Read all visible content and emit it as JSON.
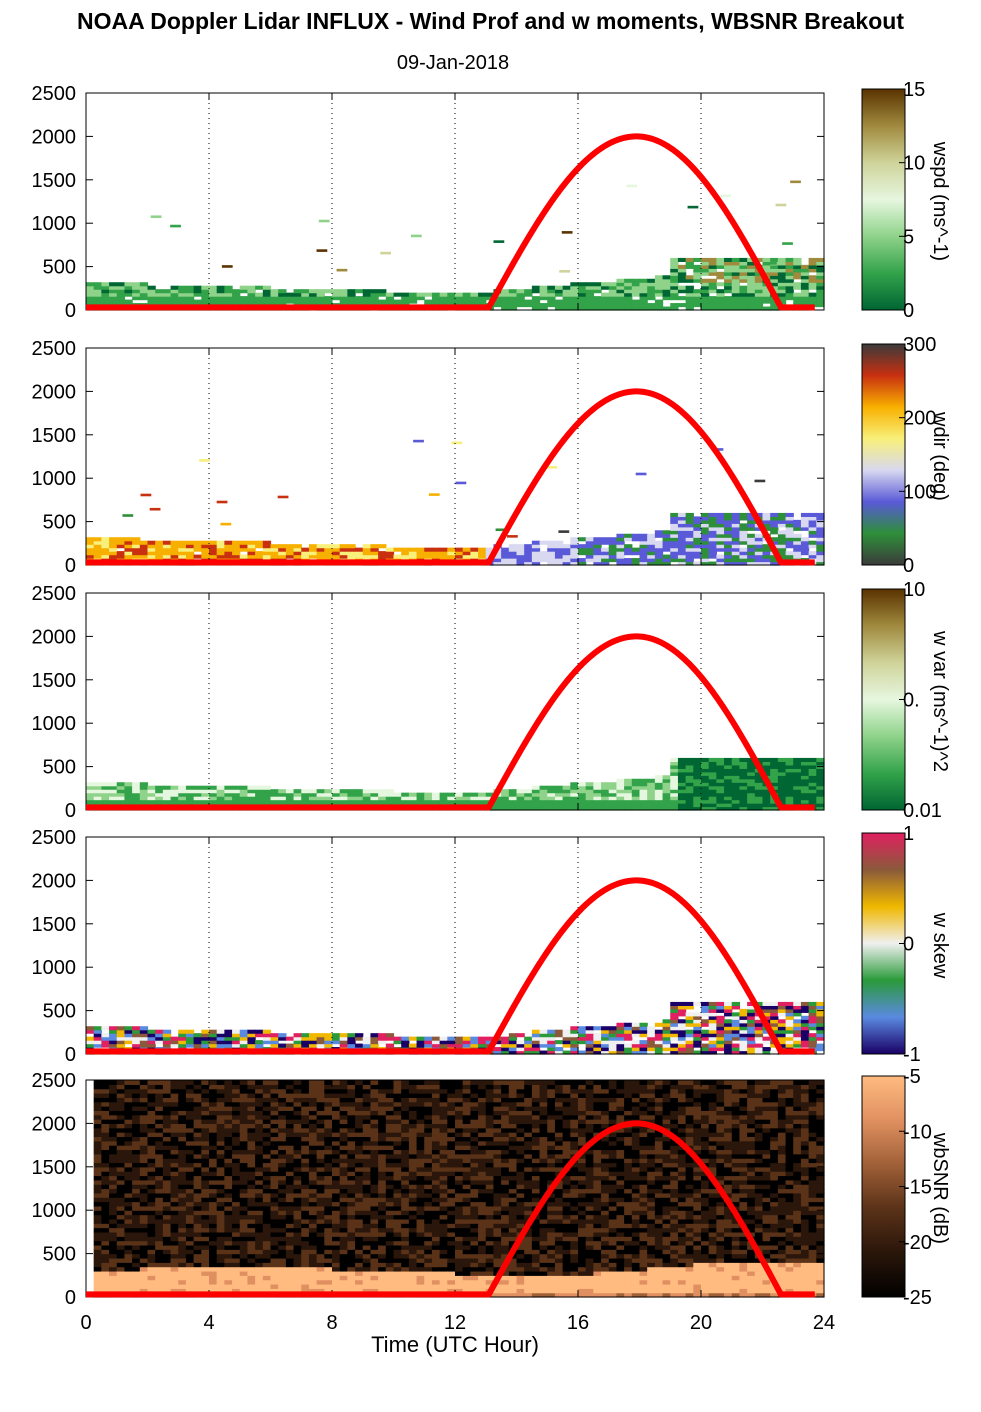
{
  "title": "NOAA Doppler Lidar INFLUX - Wind Prof and w moments, WBSNR Breakout",
  "subtitle": "09-Jan-2018",
  "xlabel": "Time (UTC Hour)",
  "colors": {
    "sun_curve": "#ff0000",
    "gridline": "#000000"
  },
  "chart_data": [
    {
      "type": "heatmap",
      "panel": "wspd",
      "colorbar_label": "wspd (ms^-1)",
      "colorbar_ticks": [
        "15",
        "10",
        "5",
        "0"
      ],
      "colorscale": [
        "#006633",
        "#33a34a",
        "#8fd28a",
        "#e6f7df",
        "#cfd39a",
        "#a08a3e",
        "#5a3300"
      ],
      "xlim": [
        0,
        24
      ],
      "ylim": [
        0,
        2500
      ],
      "x_ticks": [
        0,
        4,
        8,
        12,
        16,
        20,
        24
      ],
      "y_ticks": [
        0,
        500,
        1000,
        1500,
        2000,
        2500
      ],
      "vertical_grid": "dotted",
      "sun_curve": {
        "start_hour": 13.1,
        "peak_hour": 17.9,
        "end_hour": 22.6,
        "peak_height": 2000,
        "base_height": 30
      }
    },
    {
      "type": "heatmap",
      "panel": "wdir",
      "colorbar_label": "wdir (deg)",
      "colorbar_ticks": [
        "300",
        "200",
        "100",
        "0"
      ],
      "colorscale": [
        "#3b3b3b",
        "#2e8f3a",
        "#5a5ad8",
        "#d8d8f0",
        "#f8f07a",
        "#f8b000",
        "#c83010",
        "#3a3a3a"
      ],
      "xlim": [
        0,
        24
      ],
      "ylim": [
        0,
        2500
      ],
      "x_ticks": [
        0,
        4,
        8,
        12,
        16,
        20,
        24
      ],
      "y_ticks": [
        0,
        500,
        1000,
        1500,
        2000,
        2500
      ],
      "vertical_grid": "dotted",
      "sun_curve": {
        "start_hour": 13.1,
        "peak_hour": 17.9,
        "end_hour": 22.6,
        "peak_height": 2000,
        "base_height": 30
      }
    },
    {
      "type": "heatmap",
      "panel": "w var",
      "colorbar_label": "w var (ms^-1)^2",
      "colorbar_ticks": [
        "10",
        "0.",
        "0.01"
      ],
      "colorscale": [
        "#006633",
        "#33a34a",
        "#8fd28a",
        "#e6f7df",
        "#cfd39a",
        "#a08a3e",
        "#5a3300"
      ],
      "xlim": [
        0,
        24
      ],
      "ylim": [
        0,
        2500
      ],
      "x_ticks": [
        0,
        4,
        8,
        12,
        16,
        20,
        24
      ],
      "y_ticks": [
        0,
        500,
        1000,
        1500,
        2000,
        2500
      ],
      "vertical_grid": "dotted",
      "sun_curve": {
        "start_hour": 13.1,
        "peak_hour": 17.9,
        "end_hour": 22.6,
        "peak_height": 2000,
        "base_height": 30
      }
    },
    {
      "type": "heatmap",
      "panel": "w skew",
      "colorbar_label": "w skew",
      "colorbar_ticks": [
        "1",
        "0",
        "-1"
      ],
      "colorscale": [
        "#1a0066",
        "#5a8ae0",
        "#2a9a3a",
        "#f0f0f0",
        "#f0b800",
        "#8a5a3a",
        "#e02060"
      ],
      "xlim": [
        0,
        24
      ],
      "ylim": [
        0,
        2500
      ],
      "x_ticks": [
        0,
        4,
        8,
        12,
        16,
        20,
        24
      ],
      "y_ticks": [
        0,
        500,
        1000,
        1500,
        2000,
        2500
      ],
      "vertical_grid": "dotted",
      "sun_curve": {
        "start_hour": 13.1,
        "peak_hour": 17.9,
        "end_hour": 22.6,
        "peak_height": 2000,
        "base_height": 30
      }
    },
    {
      "type": "heatmap",
      "panel": "wbSNR",
      "colorbar_label": "wbSNR (dB)",
      "colorbar_ticks": [
        "-5",
        "-10",
        "-15",
        "-20",
        "-25"
      ],
      "colorscale": [
        "#000000",
        "#2a160a",
        "#5a3218",
        "#a06038",
        "#e09060",
        "#ffbb80"
      ],
      "xlim": [
        0,
        24
      ],
      "ylim": [
        0,
        2500
      ],
      "x_ticks": [
        0,
        4,
        8,
        12,
        16,
        20,
        24
      ],
      "y_ticks": [
        0,
        500,
        1000,
        1500,
        2000,
        2500
      ],
      "vertical_grid": "none",
      "sun_curve": {
        "start_hour": 13.1,
        "peak_hour": 17.9,
        "end_hour": 22.6,
        "peak_height": 2000,
        "base_height": 30
      }
    }
  ]
}
